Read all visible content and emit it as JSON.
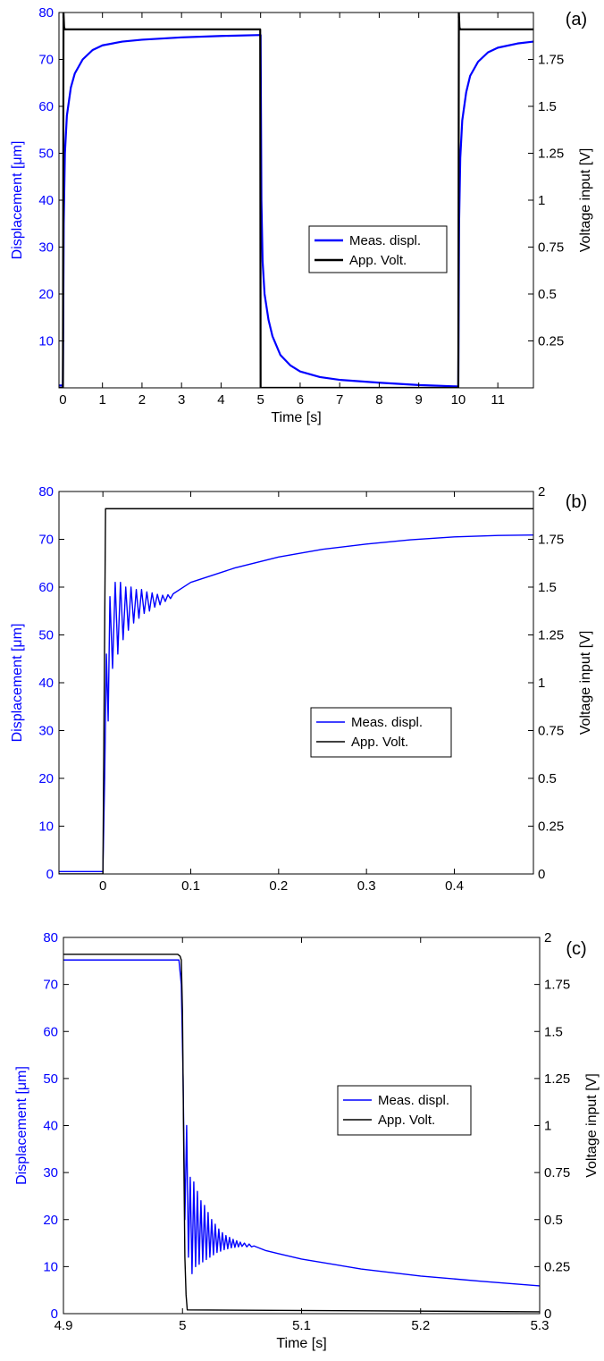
{
  "colors": {
    "displacement": "#0000ff",
    "voltage": "#000000",
    "axis": "#000000"
  },
  "chart_data": [
    {
      "type": "line",
      "panel_label": "(a)",
      "xlabel": "Time [s]",
      "ylabel": "Displacement [μm]",
      "y2label": "Voltage input [V]",
      "xlim": [
        -0.1,
        11.9
      ],
      "ylim": [
        0,
        80
      ],
      "y2lim": [
        0,
        2
      ],
      "xticks": [
        0,
        1,
        2,
        3,
        4,
        5,
        6,
        7,
        8,
        9,
        10,
        11
      ],
      "yticks": [
        10,
        20,
        30,
        40,
        50,
        60,
        70,
        80
      ],
      "y2ticks": [
        0.25,
        0.5,
        0.75,
        1,
        1.25,
        1.5,
        1.75
      ],
      "y2ticklabels": [
        "0.25",
        "0.5",
        "0.75",
        "1",
        "1.25",
        "1.5",
        "1.75"
      ],
      "legend": {
        "entries": [
          "Meas. displ.",
          "App. Volt."
        ],
        "placement": "center-right"
      },
      "grid": false,
      "series": [
        {
          "name": "Meas. displ.",
          "axis": "left",
          "color": "#0000ff",
          "x": [
            -0.1,
            0.0,
            0.02,
            0.05,
            0.1,
            0.2,
            0.3,
            0.5,
            0.75,
            1.0,
            1.5,
            2.0,
            3.0,
            4.0,
            4.99,
            5.0,
            5.02,
            5.05,
            5.1,
            5.2,
            5.3,
            5.5,
            5.75,
            6.0,
            6.5,
            7.0,
            8.0,
            9.0,
            9.99,
            10.0,
            10.02,
            10.05,
            10.1,
            10.2,
            10.3,
            10.5,
            10.75,
            11.0,
            11.5,
            11.9
          ],
          "y": [
            0.5,
            0.5,
            35,
            50,
            58,
            64,
            67,
            70,
            72,
            73,
            73.8,
            74.2,
            74.7,
            75.0,
            75.2,
            75.2,
            40,
            27,
            20,
            14.5,
            11,
            7,
            4.8,
            3.5,
            2.3,
            1.7,
            1.1,
            0.6,
            0.3,
            0.3,
            35,
            49,
            57,
            63,
            66.5,
            69.5,
            71.5,
            72.5,
            73.4,
            73.8
          ]
        },
        {
          "name": "App. Volt.",
          "axis": "right",
          "color": "#000000",
          "x": [
            -0.1,
            0.0,
            0.015,
            0.03,
            0.05,
            4.99,
            5.0,
            5.02,
            9.99,
            10.0,
            10.015,
            10.03,
            10.05,
            11.9
          ],
          "y": [
            0,
            0,
            2.0,
            1.92,
            1.91,
            1.91,
            0,
            0,
            0,
            0,
            2.0,
            1.92,
            1.91,
            1.91
          ]
        }
      ]
    },
    {
      "type": "line",
      "panel_label": "(b)",
      "xlabel": "Time [s]",
      "ylabel": "Displacement [μm]",
      "y2label": "Voltage input [V]",
      "xlim": [
        -0.05,
        0.49
      ],
      "ylim": [
        0,
        80
      ],
      "y2lim": [
        0,
        2
      ],
      "xticks": [
        0,
        0.1,
        0.2,
        0.3,
        0.4
      ],
      "yticks": [
        0,
        10,
        20,
        30,
        40,
        50,
        60,
        70,
        80
      ],
      "y2ticks": [
        0,
        0.25,
        0.5,
        0.75,
        1,
        1.25,
        1.5,
        1.75,
        2
      ],
      "y2ticklabels": [
        "0",
        "0.25",
        "0.5",
        "0.75",
        "1",
        "1.25",
        "1.5",
        "1.75",
        "2"
      ],
      "legend": {
        "entries": [
          "Meas. displ.",
          "App. Volt."
        ],
        "placement": "center-right"
      },
      "grid": false,
      "series": [
        {
          "name": "Meas. displ.",
          "axis": "left",
          "color": "#0000ff",
          "x": [
            -0.05,
            0.0,
            0.002,
            0.004,
            0.006,
            0.008,
            0.011,
            0.014,
            0.017,
            0.02,
            0.023,
            0.026,
            0.029,
            0.032,
            0.035,
            0.038,
            0.041,
            0.044,
            0.047,
            0.05,
            0.053,
            0.056,
            0.059,
            0.062,
            0.065,
            0.068,
            0.071,
            0.074,
            0.077,
            0.08,
            0.09,
            0.1,
            0.15,
            0.2,
            0.25,
            0.3,
            0.35,
            0.4,
            0.45,
            0.49
          ],
          "y": [
            0.5,
            0.5,
            20,
            46,
            32,
            58,
            43,
            61,
            46,
            61,
            49,
            60,
            51,
            60,
            52.5,
            59.5,
            53.5,
            59.5,
            54.5,
            59,
            55,
            58.8,
            55.8,
            58.5,
            56.3,
            58.3,
            57,
            58.4,
            57.6,
            58.6,
            59.8,
            61,
            64,
            66.3,
            67.9,
            69.0,
            69.9,
            70.5,
            70.8,
            70.9
          ]
        },
        {
          "name": "App. Volt.",
          "axis": "right",
          "color": "#000000",
          "x": [
            -0.05,
            0.0,
            0.003,
            0.49
          ],
          "y": [
            0,
            0,
            1.91,
            1.91
          ]
        }
      ]
    },
    {
      "type": "line",
      "panel_label": "(c)",
      "xlabel": "Time [s]",
      "ylabel": "Displacement [μm]",
      "y2label": "Voltage input [V]",
      "xlim": [
        4.9,
        5.3
      ],
      "ylim": [
        0,
        80
      ],
      "y2lim": [
        0,
        2
      ],
      "xticks": [
        4.9,
        5,
        5.1,
        5.2,
        5.3
      ],
      "yticks": [
        0,
        10,
        20,
        30,
        40,
        50,
        60,
        70,
        80
      ],
      "y2ticks": [
        0,
        0.25,
        0.5,
        0.75,
        1,
        1.25,
        1.5,
        1.75,
        2
      ],
      "y2ticklabels": [
        "0",
        "0.25",
        "0.5",
        "0.75",
        "1",
        "1.25",
        "1.5",
        "1.75",
        "2"
      ],
      "legend": {
        "entries": [
          "Meas. displ.",
          "App. Volt."
        ],
        "placement": "center-right"
      },
      "grid": false,
      "series": [
        {
          "name": "Meas. displ.",
          "axis": "left",
          "color": "#0000ff",
          "x": [
            4.9,
            4.997,
            4.999,
            5.0005,
            5.002,
            5.0035,
            5.005,
            5.0065,
            5.008,
            5.0095,
            5.011,
            5.0125,
            5.014,
            5.0155,
            5.017,
            5.0185,
            5.02,
            5.0215,
            5.023,
            5.0245,
            5.026,
            5.0275,
            5.029,
            5.0305,
            5.032,
            5.0335,
            5.035,
            5.0365,
            5.038,
            5.0395,
            5.041,
            5.0425,
            5.044,
            5.0455,
            5.047,
            5.0485,
            5.05,
            5.052,
            5.054,
            5.056,
            5.058,
            5.06,
            5.065,
            5.07,
            5.08,
            5.1,
            5.15,
            5.2,
            5.25,
            5.3
          ],
          "y": [
            75.2,
            75.2,
            70,
            50,
            20,
            40,
            12,
            29,
            8.5,
            28,
            10,
            26,
            10.5,
            24,
            11,
            23,
            11.5,
            21.5,
            12,
            20,
            12.5,
            19,
            13,
            18,
            13.3,
            17.2,
            13.6,
            16.6,
            13.8,
            16.2,
            14,
            15.8,
            14.1,
            15.5,
            14.2,
            15.2,
            14.3,
            15.0,
            14.2,
            14.8,
            14.2,
            14.4,
            13.9,
            13.4,
            12.8,
            11.6,
            9.5,
            8.0,
            6.9,
            5.9
          ]
        },
        {
          "name": "App. Volt.",
          "axis": "right",
          "color": "#000000",
          "x": [
            4.9,
            4.996,
            4.998,
            4.999,
            5.0,
            5.001,
            5.002,
            5.003,
            5.004,
            5.3
          ],
          "y": [
            1.91,
            1.91,
            1.9,
            1.88,
            1.6,
            0.9,
            0.3,
            0.1,
            0.02,
            0.01
          ]
        }
      ]
    }
  ]
}
